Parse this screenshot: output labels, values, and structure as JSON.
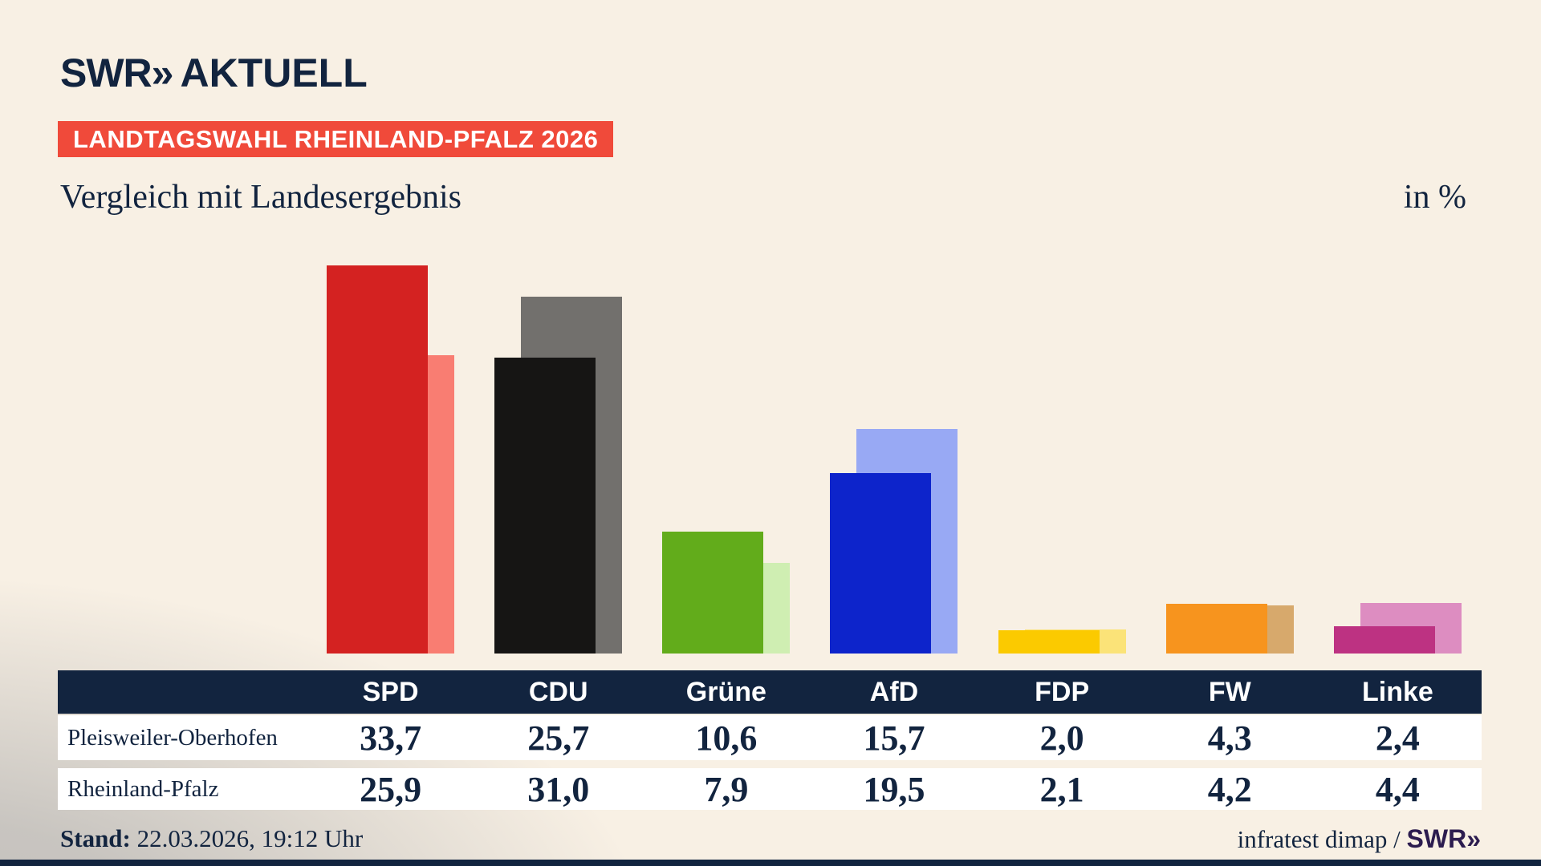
{
  "brand": {
    "logo_swr": "SWR",
    "logo_chevrons": "»",
    "logo_aktuell": "AKTUELL"
  },
  "header": {
    "badge": "LANDTAGSWAHL RHEINLAND-PFALZ 2026",
    "title": "Vergleich mit Landesergebnis",
    "unit": "in %"
  },
  "footer": {
    "stand_label": "Stand:",
    "stand_value": " 22.03.2026, 19:12 Uhr",
    "source_prefix": "infratest dimap / ",
    "source_brand": "SWR»"
  },
  "colors": {
    "navy": "#12243f",
    "badge_red": "#f04a3a",
    "background_cream": "#f8f0e4",
    "background_gray": "#c3c0bc",
    "row_white": "#ffffff",
    "source_brand_purple": "#2c1c4f"
  },
  "chart_data": {
    "type": "bar",
    "title": "Vergleich mit Landesergebnis",
    "unit": "in %",
    "categories": [
      "SPD",
      "CDU",
      "Grüne",
      "AfD",
      "FDP",
      "FW",
      "Linke"
    ],
    "series": [
      {
        "name": "Pleisweiler-Oberhofen",
        "values": [
          33.7,
          25.7,
          10.6,
          15.7,
          2.0,
          4.3,
          2.4
        ],
        "display": [
          "33,7",
          "25,7",
          "10,6",
          "15,7",
          "2,0",
          "4,3",
          "2,4"
        ]
      },
      {
        "name": "Rheinland-Pfalz",
        "values": [
          25.9,
          31.0,
          7.9,
          19.5,
          2.1,
          4.2,
          4.4
        ],
        "display": [
          "25,9",
          "31,0",
          "7,9",
          "19,5",
          "2,1",
          "4,2",
          "4,4"
        ]
      }
    ],
    "party_colors": [
      {
        "party": "SPD",
        "main": "#d42221",
        "light": "#f97d72"
      },
      {
        "party": "CDU",
        "main": "#161514",
        "light": "#72706d"
      },
      {
        "party": "Grüne",
        "main": "#62ac1b",
        "light": "#cfeeb2"
      },
      {
        "party": "AfD",
        "main": "#0d24cb",
        "light": "#98a9f4"
      },
      {
        "party": "FDP",
        "main": "#fbca00",
        "light": "#fbe378"
      },
      {
        "party": "FW",
        "main": "#f7941e",
        "light": "#d7a96c"
      },
      {
        "party": "Linke",
        "main": "#bd3282",
        "light": "#dd8dc1"
      }
    ],
    "ylim": [
      0,
      35
    ],
    "grid": false,
    "legend_position": "table-below"
  }
}
